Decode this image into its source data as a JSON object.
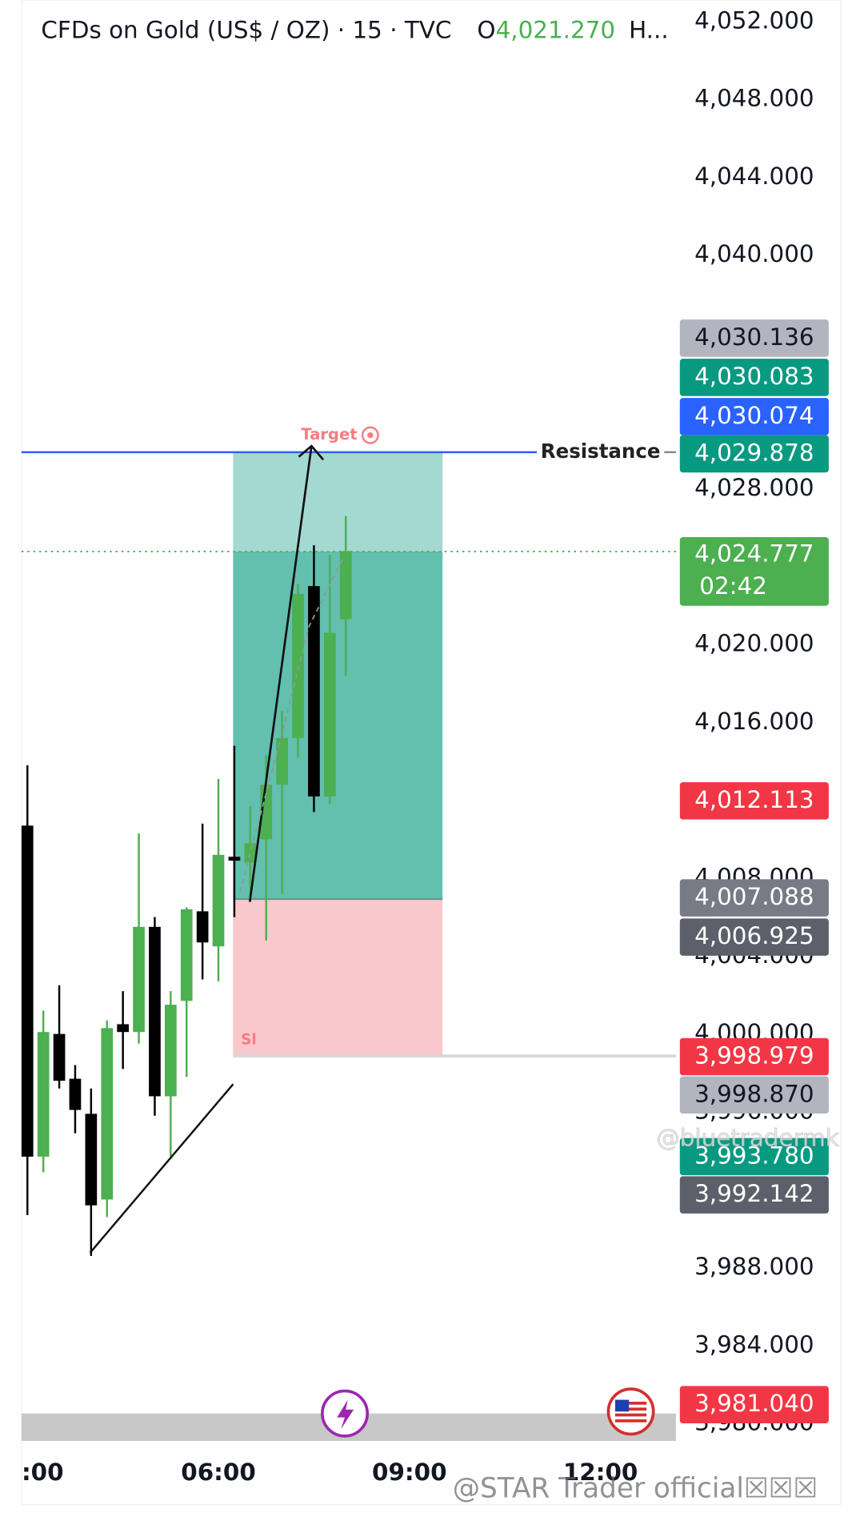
{
  "chart_data": {
    "type": "candlestick",
    "title": "CFDs on Gold (US$ / OZ) · 15 · TVC",
    "ohlc_header": {
      "label": "O",
      "value": 4021.27,
      "value_label": "4,021.270",
      "more": "H..."
    },
    "x": [
      3,
      3.25,
      3.5,
      3.75,
      4,
      4.25,
      4.5,
      4.75,
      5,
      5.25,
      5.5,
      5.75,
      6,
      6.25,
      6.5,
      6.75,
      7,
      7.25,
      7.5,
      7.75,
      8
    ],
    "open": [
      4010.7,
      3993.7,
      4000.0,
      3997.7,
      3995.9,
      3991.5,
      4000.5,
      4000.1,
      4005.5,
      3996.8,
      4001.7,
      4006.3,
      4004.5,
      4009.1,
      4008.8,
      4010.0,
      4012.8,
      4015.2,
      4023.0,
      4012.2,
      4021.3
    ],
    "high": [
      4013.8,
      4001.2,
      4002.5,
      3998.4,
      3997.2,
      4000.7,
      4002.2,
      4010.3,
      4006.0,
      4002.2,
      4006.5,
      4010.8,
      4013.1,
      4014.8,
      4011.7,
      4014.3,
      4016.6,
      4023.1,
      4025.1,
      4024.6,
      4026.6
    ],
    "low": [
      3990.7,
      3992.9,
      3997.2,
      3994.9,
      3988.6,
      3990.6,
      3998.2,
      3999.5,
      3995.8,
      3993.7,
      3997.8,
      4002.8,
      4002.7,
      4006.0,
      4006.8,
      4004.8,
      4007.2,
      4014.2,
      4011.4,
      4011.8,
      4018.4
    ],
    "close": [
      3993.7,
      4000.1,
      3997.6,
      3996.1,
      3991.2,
      4000.3,
      4000.1,
      4005.5,
      3996.8,
      4001.5,
      4006.4,
      4004.7,
      4009.2,
      4008.9,
      4009.8,
      4012.8,
      4015.2,
      4022.6,
      4012.2,
      4020.6,
      4024.8
    ],
    "up_color": "#4caf50",
    "down_color": "#000000",
    "xlim": [
      2.908,
      13.185
    ],
    "xticks": [
      {
        "value": 3,
        "label": ":00"
      },
      {
        "value": 6,
        "label": "06:00"
      },
      {
        "value": 9,
        "label": "09:00"
      },
      {
        "value": 12,
        "label": "12:00"
      }
    ],
    "ylim": [
      3979.1,
      4053.1
    ],
    "yticks": [
      {
        "value": 4052,
        "label": "4,052.000"
      },
      {
        "value": 4048,
        "label": "4,048.000"
      },
      {
        "value": 4044,
        "label": "4,044.000"
      },
      {
        "value": 4040,
        "label": "4,040.000"
      },
      {
        "value": 4028,
        "label": "4,028.000"
      },
      {
        "value": 4020,
        "label": "4,020.000"
      },
      {
        "value": 4016,
        "label": "4,016.000"
      },
      {
        "value": 4008,
        "label": "4,008.000"
      },
      {
        "value": 4004,
        "label": "4,004.000"
      },
      {
        "value": 4000,
        "label": "4,000.000"
      },
      {
        "value": 3996,
        "label": "3,996.000"
      },
      {
        "value": 3988,
        "label": "3,988.000"
      },
      {
        "value": 3984,
        "label": "3,984.000"
      },
      {
        "value": 3980,
        "label": "3,980.000"
      }
    ],
    "price_labels": [
      {
        "value": 4030.136,
        "label": "4,030.136",
        "color": "#b2b5be",
        "text_color": "#131722"
      },
      {
        "value": 4030.083,
        "label": "4,030.083",
        "color": "#089981",
        "text_color": "#ffffff"
      },
      {
        "value": 4030.074,
        "label": "4,030.074",
        "color": "#2962ff",
        "text_color": "#ffffff"
      },
      {
        "value": 4029.878,
        "label": "4,029.878",
        "color": "#089981",
        "text_color": "#ffffff"
      },
      {
        "value": 4024.777,
        "label": "4,024.777",
        "countdown": "02:42",
        "color": "#4caf50",
        "text_color": "#ffffff"
      },
      {
        "value": 4012.113,
        "label": "4,012.113",
        "color": "#f23645",
        "text_color": "#ffffff"
      },
      {
        "value": 4007.088,
        "label": "4,007.088",
        "color": "#787b86",
        "text_color": "#ffffff"
      },
      {
        "value": 4006.925,
        "label": "4,006.925",
        "color": "#5d606b",
        "text_color": "#ffffff"
      },
      {
        "value": 3998.979,
        "label": "3,998.979",
        "color": "#f23645",
        "text_color": "#ffffff"
      },
      {
        "value": 3998.87,
        "label": "3,998.870",
        "color": "#b2b5be",
        "text_color": "#131722"
      },
      {
        "value": 3993.78,
        "label": "3,993.780",
        "color": "#089981",
        "text_color": "#ffffff"
      },
      {
        "value": 3992.142,
        "label": "3,992.142",
        "color": "#5d606b",
        "text_color": "#ffffff"
      },
      {
        "value": 3981.04,
        "label": "3,981.040",
        "color": "#f23645",
        "text_color": "#ffffff"
      }
    ],
    "position": {
      "start": 6.23,
      "end": 9.52,
      "target": 4029.878,
      "entry": 4006.925,
      "stop": 3998.87,
      "current": 4024.777,
      "target_label": "Target",
      "stop_label": "Sl"
    },
    "resistance": {
      "value": 4029.878,
      "label": "Resistance"
    },
    "watermarks": [
      "@bluetradermk",
      "@STAR Trader official☒☒☒"
    ]
  }
}
